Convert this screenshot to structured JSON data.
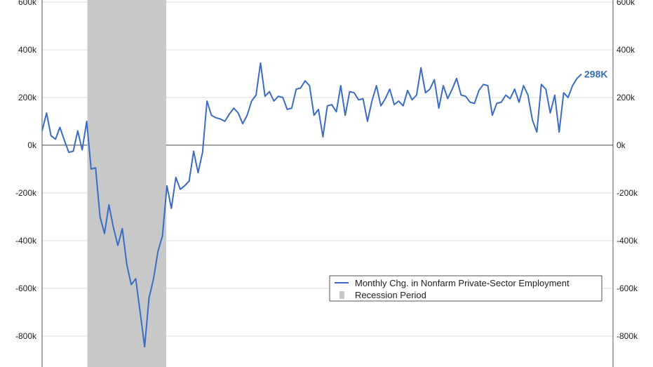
{
  "chart_data": {
    "type": "line",
    "title": "",
    "y_ticks": [
      {
        "value": 600000,
        "label": "600k"
      },
      {
        "value": 400000,
        "label": "400k"
      },
      {
        "value": 200000,
        "label": "200k"
      },
      {
        "value": 0,
        "label": "0k"
      },
      {
        "value": -200000,
        "label": "-200k"
      },
      {
        "value": -400000,
        "label": "-400k"
      },
      {
        "value": -600000,
        "label": "-600k"
      },
      {
        "value": -800000,
        "label": "-800k"
      }
    ],
    "ylim": [
      -930000,
      600000
    ],
    "grid": true,
    "legend_placement": "bottom-right",
    "series": [
      {
        "name": "Monthly Chg. in Nonfarm Private-Sector Employment",
        "color": "#3a6cc4",
        "values": [
          60000,
          135000,
          40000,
          25000,
          75000,
          20000,
          -30000,
          -25000,
          60000,
          -20000,
          100000,
          -100000,
          -95000,
          -300000,
          -370000,
          -250000,
          -345000,
          -420000,
          -350000,
          -500000,
          -585000,
          -560000,
          -700000,
          -845000,
          -640000,
          -560000,
          -445000,
          -380000,
          -170000,
          -265000,
          -135000,
          -185000,
          -170000,
          -150000,
          -25000,
          -115000,
          -30000,
          185000,
          125000,
          115000,
          110000,
          100000,
          130000,
          155000,
          135000,
          90000,
          125000,
          185000,
          210000,
          345000,
          205000,
          225000,
          185000,
          205000,
          200000,
          150000,
          155000,
          235000,
          240000,
          270000,
          250000,
          125000,
          150000,
          35000,
          165000,
          170000,
          140000,
          250000,
          125000,
          225000,
          220000,
          190000,
          195000,
          100000,
          185000,
          250000,
          165000,
          195000,
          235000,
          170000,
          185000,
          165000,
          230000,
          190000,
          210000,
          325000,
          220000,
          235000,
          275000,
          155000,
          250000,
          195000,
          235000,
          280000,
          210000,
          205000,
          180000,
          175000,
          230000,
          255000,
          250000,
          125000,
          175000,
          180000,
          210000,
          195000,
          235000,
          180000,
          250000,
          210000,
          105000,
          55000,
          255000,
          235000,
          135000,
          210000,
          55000,
          220000,
          200000,
          250000,
          280000,
          298000
        ]
      }
    ],
    "recession": {
      "label": "Recession Period",
      "start_index": 10,
      "end_index": 28,
      "color": "#c8c8c8"
    },
    "annotation": {
      "text": "298K",
      "color": "#3a6cc4"
    }
  }
}
